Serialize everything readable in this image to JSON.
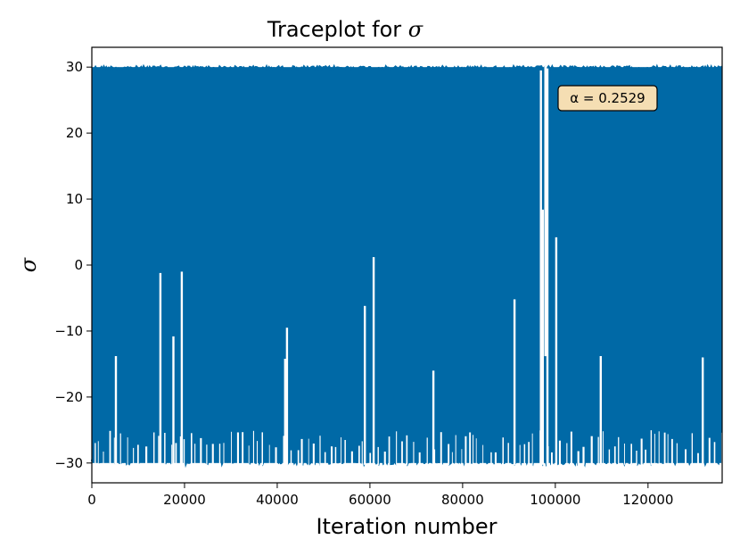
{
  "chart_data": {
    "type": "line",
    "title_prefix": "Traceplot for ",
    "title_symbol": "σ",
    "xlabel": "Iteration number",
    "ylabel": "σ",
    "xlim": [
      0,
      136000
    ],
    "ylim": [
      -33,
      33
    ],
    "x_ticks": [
      0,
      20000,
      40000,
      60000,
      80000,
      100000,
      120000
    ],
    "x_tick_labels": [
      "0",
      "20000",
      "40000",
      "60000",
      "80000",
      "100000",
      "120000"
    ],
    "y_ticks": [
      -30,
      -20,
      -10,
      0,
      10,
      20,
      30
    ],
    "y_tick_labels": [
      "−30",
      "−20",
      "−10",
      "0",
      "10",
      "20",
      "30"
    ],
    "grid": false,
    "series": [
      {
        "color": "#0069a6",
        "upper_envelope": 30,
        "lower_envelope": -30,
        "gap_regions": [
          {
            "x": 5200,
            "min": -13.8
          },
          {
            "x": 14800,
            "min": -1.2
          },
          {
            "x": 17600,
            "min": -10.8
          },
          {
            "x": 19400,
            "min": -1.0
          },
          {
            "x": 41700,
            "min": -14.2
          },
          {
            "x": 42100,
            "min": -9.5
          },
          {
            "x": 58900,
            "min": -6.2
          },
          {
            "x": 60800,
            "min": 1.2
          },
          {
            "x": 73700,
            "min": -16.0
          },
          {
            "x": 91200,
            "min": -5.2
          },
          {
            "x": 96900,
            "min": 29.5
          },
          {
            "x": 97300,
            "min": 8.4
          },
          {
            "x": 98300,
            "min": 29.8
          },
          {
            "x": 100200,
            "min": 4.2
          },
          {
            "x": 109800,
            "min": -13.8
          },
          {
            "x": 131800,
            "min": -14.0
          }
        ],
        "top_gap_regions": [
          {
            "x": 97900,
            "max": -13.8
          }
        ]
      }
    ],
    "annotation": {
      "text": "α = 0.2529",
      "box_color": "#f5deb3"
    }
  }
}
